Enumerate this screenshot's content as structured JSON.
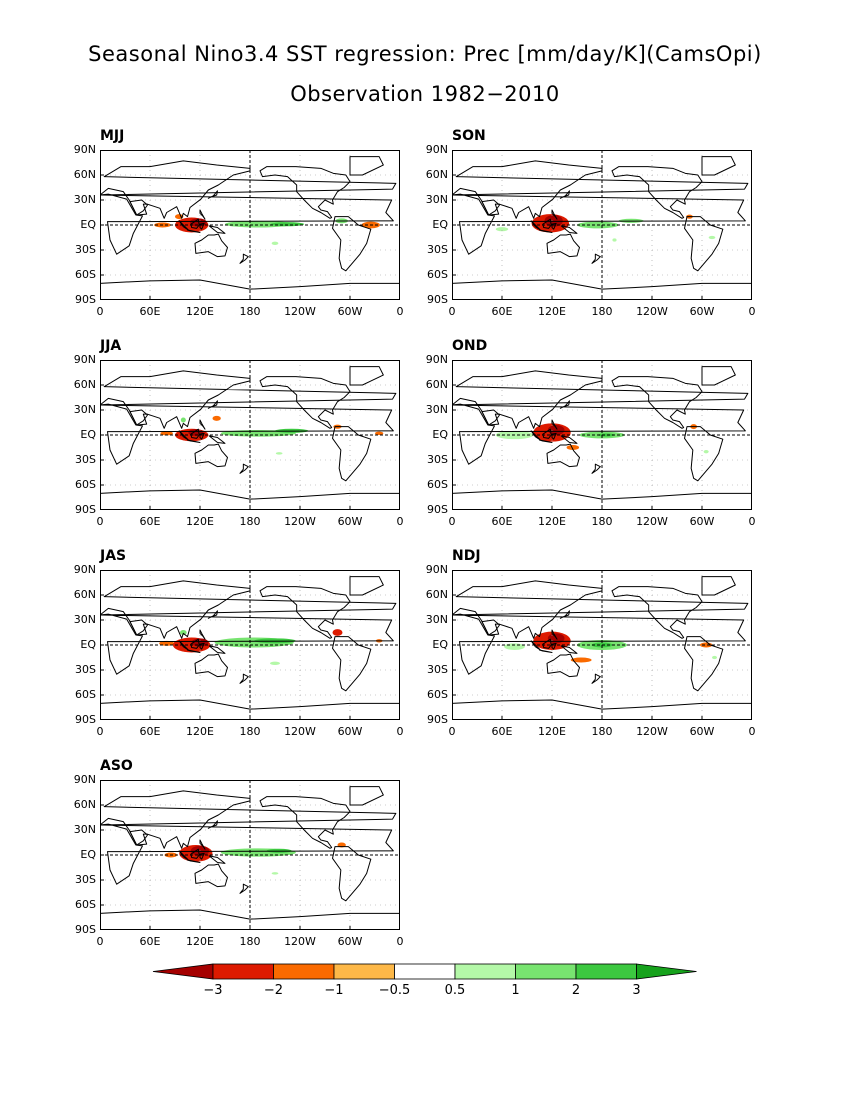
{
  "title_line1": "Seasonal Nino3.4 SST regression: Prec [mm/day/K](CamsOpi)",
  "title_line2": "Observation 1982−2010",
  "chart_data": {
    "type": "heatmap",
    "title": "Seasonal Nino3.4 SST regression: Prec [mm/day/K](CamsOpi)",
    "subtitle": "Observation 1982−2010",
    "panels": [
      "MJJ",
      "SON",
      "JJA",
      "OND",
      "JAS",
      "NDJ",
      "ASO"
    ],
    "x_ticks": [
      "0",
      "60E",
      "120E",
      "180",
      "120W",
      "60W",
      "0"
    ],
    "y_ticks": [
      "90N",
      "60N",
      "30N",
      "EQ",
      "30S",
      "60S",
      "90S"
    ],
    "xlim": [
      0,
      360
    ],
    "ylim": [
      -90,
      90
    ],
    "colorbar": {
      "levels": [
        "−3",
        "−2",
        "−1",
        "−0.5",
        "0.5",
        "1",
        "2",
        "3"
      ],
      "colors": [
        "#a50000",
        "#dd1a00",
        "#fa6a00",
        "#fdb848",
        "#ffffff",
        "#b4f8a8",
        "#78e470",
        "#3cc840",
        "#16a21c"
      ]
    },
    "anomalies": {
      "MJJ": [
        {
          "lon": 110,
          "lat": 0,
          "w": 40,
          "h": 18,
          "v": -2
        },
        {
          "lon": 118,
          "lat": 3,
          "w": 20,
          "h": 10,
          "v": -3
        },
        {
          "lon": 75,
          "lat": 0,
          "w": 20,
          "h": 6,
          "v": -1
        },
        {
          "lon": 95,
          "lat": 10,
          "w": 10,
          "h": 6,
          "v": -1
        },
        {
          "lon": 190,
          "lat": 1,
          "w": 80,
          "h": 8,
          "v": 1
        },
        {
          "lon": 225,
          "lat": 1,
          "w": 40,
          "h": 5,
          "v": 2
        },
        {
          "lon": 325,
          "lat": 0,
          "w": 22,
          "h": 8,
          "v": -1
        },
        {
          "lon": 290,
          "lat": 5,
          "w": 15,
          "h": 6,
          "v": 1
        },
        {
          "lon": 210,
          "lat": -22,
          "w": 8,
          "h": 4,
          "v": 0.5
        }
      ],
      "SON": [
        {
          "lon": 118,
          "lat": 2,
          "w": 45,
          "h": 22,
          "v": -2
        },
        {
          "lon": 122,
          "lat": 5,
          "w": 22,
          "h": 14,
          "v": -3
        },
        {
          "lon": 175,
          "lat": 0,
          "w": 50,
          "h": 8,
          "v": 1
        },
        {
          "lon": 215,
          "lat": 5,
          "w": 30,
          "h": 5,
          "v": 1
        },
        {
          "lon": 60,
          "lat": -5,
          "w": 15,
          "h": 5,
          "v": 0.5
        },
        {
          "lon": 195,
          "lat": -18,
          "w": 5,
          "h": 4,
          "v": 0.5
        },
        {
          "lon": 285,
          "lat": 10,
          "w": 8,
          "h": 5,
          "v": -1
        },
        {
          "lon": 312,
          "lat": -15,
          "w": 8,
          "h": 4,
          "v": 0.5
        }
      ],
      "JJA": [
        {
          "lon": 110,
          "lat": 0,
          "w": 40,
          "h": 15,
          "v": -2
        },
        {
          "lon": 115,
          "lat": 3,
          "w": 18,
          "h": 8,
          "v": -3
        },
        {
          "lon": 80,
          "lat": 2,
          "w": 15,
          "h": 5,
          "v": -1
        },
        {
          "lon": 190,
          "lat": 2,
          "w": 90,
          "h": 8,
          "v": 1
        },
        {
          "lon": 230,
          "lat": 5,
          "w": 40,
          "h": 5,
          "v": 2
        },
        {
          "lon": 100,
          "lat": 18,
          "w": 6,
          "h": 6,
          "v": 1
        },
        {
          "lon": 140,
          "lat": 20,
          "w": 10,
          "h": 6,
          "v": -1
        },
        {
          "lon": 285,
          "lat": 10,
          "w": 10,
          "h": 5,
          "v": -1
        },
        {
          "lon": 335,
          "lat": 2,
          "w": 10,
          "h": 4,
          "v": -1
        },
        {
          "lon": 215,
          "lat": -22,
          "w": 8,
          "h": 3,
          "v": 0.5
        }
      ],
      "OND": [
        {
          "lon": 120,
          "lat": 3,
          "w": 45,
          "h": 22,
          "v": -2
        },
        {
          "lon": 125,
          "lat": 6,
          "w": 20,
          "h": 12,
          "v": -3
        },
        {
          "lon": 75,
          "lat": 0,
          "w": 45,
          "h": 10,
          "v": 0.5
        },
        {
          "lon": 180,
          "lat": 0,
          "w": 55,
          "h": 8,
          "v": 1
        },
        {
          "lon": 185,
          "lat": 0,
          "w": 20,
          "h": 4,
          "v": 2
        },
        {
          "lon": 145,
          "lat": -15,
          "w": 15,
          "h": 6,
          "v": -1
        },
        {
          "lon": 290,
          "lat": 10,
          "w": 8,
          "h": 6,
          "v": -1
        },
        {
          "lon": 305,
          "lat": -20,
          "w": 6,
          "h": 4,
          "v": 0.5
        }
      ],
      "JAS": [
        {
          "lon": 110,
          "lat": 0,
          "w": 45,
          "h": 18,
          "v": -2
        },
        {
          "lon": 120,
          "lat": 3,
          "w": 20,
          "h": 10,
          "v": -3
        },
        {
          "lon": 80,
          "lat": 2,
          "w": 18,
          "h": 6,
          "v": -1
        },
        {
          "lon": 185,
          "lat": 3,
          "w": 95,
          "h": 12,
          "v": 1
        },
        {
          "lon": 210,
          "lat": 5,
          "w": 50,
          "h": 6,
          "v": 2
        },
        {
          "lon": 100,
          "lat": 15,
          "w": 8,
          "h": 6,
          "v": 1
        },
        {
          "lon": 285,
          "lat": 15,
          "w": 12,
          "h": 8,
          "v": -2
        },
        {
          "lon": 335,
          "lat": 5,
          "w": 8,
          "h": 4,
          "v": -1
        },
        {
          "lon": 210,
          "lat": -22,
          "w": 12,
          "h": 4,
          "v": 0.5
        }
      ],
      "NDJ": [
        {
          "lon": 120,
          "lat": 5,
          "w": 45,
          "h": 22,
          "v": -2
        },
        {
          "lon": 125,
          "lat": 8,
          "w": 20,
          "h": 12,
          "v": -3
        },
        {
          "lon": 180,
          "lat": 0,
          "w": 60,
          "h": 12,
          "v": 1
        },
        {
          "lon": 180,
          "lat": 0,
          "w": 25,
          "h": 6,
          "v": 2
        },
        {
          "lon": 155,
          "lat": -18,
          "w": 25,
          "h": 6,
          "v": -1
        },
        {
          "lon": 75,
          "lat": -2,
          "w": 25,
          "h": 8,
          "v": 0.5
        },
        {
          "lon": 305,
          "lat": 0,
          "w": 15,
          "h": 6,
          "v": -1
        },
        {
          "lon": 315,
          "lat": -15,
          "w": 6,
          "h": 4,
          "v": 0.5
        }
      ],
      "ASO": [
        {
          "lon": 115,
          "lat": 2,
          "w": 40,
          "h": 20,
          "v": -2
        },
        {
          "lon": 120,
          "lat": 5,
          "w": 22,
          "h": 12,
          "v": -3
        },
        {
          "lon": 85,
          "lat": 0,
          "w": 15,
          "h": 6,
          "v": -1
        },
        {
          "lon": 190,
          "lat": 3,
          "w": 90,
          "h": 10,
          "v": 1
        },
        {
          "lon": 215,
          "lat": 5,
          "w": 30,
          "h": 5,
          "v": 2
        },
        {
          "lon": 290,
          "lat": 12,
          "w": 10,
          "h": 6,
          "v": -1
        },
        {
          "lon": 210,
          "lat": -22,
          "w": 8,
          "h": 3,
          "v": 0.5
        }
      ]
    }
  }
}
